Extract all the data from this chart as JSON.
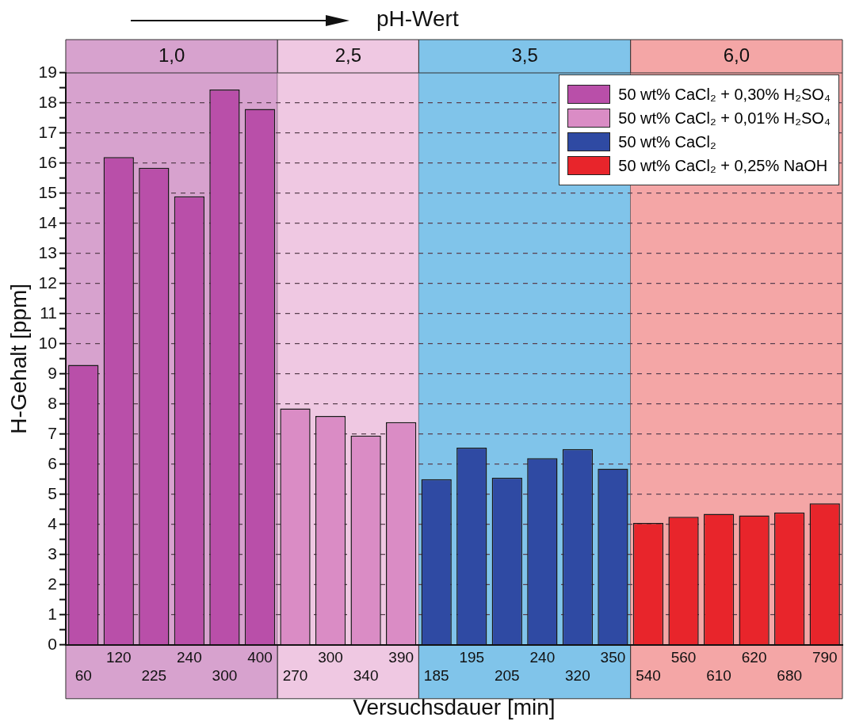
{
  "chart_data": {
    "type": "bar",
    "title": "pH-Wert",
    "xlabel": "Versuchsdauer [min]",
    "ylabel": "H-Gehalt [ppm]",
    "categories": [
      "60",
      "120",
      "225",
      "240",
      "300",
      "400",
      "270",
      "300",
      "340",
      "390",
      "185",
      "195",
      "205",
      "240",
      "320",
      "350",
      "540",
      "560",
      "610",
      "620",
      "680",
      "790"
    ],
    "series": [
      {
        "name": "50 wt% CaCl₂ + 0,30% H₂SO₄",
        "color": "#b94fa9",
        "values": [
          9.3,
          16.2,
          15.85,
          14.9,
          18.45,
          17.8,
          null,
          null,
          null,
          null,
          null,
          null,
          null,
          null,
          null,
          null,
          null,
          null,
          null,
          null,
          null,
          null
        ]
      },
      {
        "name": "50 wt% CaCl₂ + 0,01% H₂SO₄",
        "color": "#da8cc5",
        "values": [
          null,
          null,
          null,
          null,
          null,
          null,
          7.85,
          7.6,
          6.95,
          7.4,
          null,
          null,
          null,
          null,
          null,
          null,
          null,
          null,
          null,
          null,
          null,
          null
        ]
      },
      {
        "name": "50 wt% CaCl₂",
        "color": "#2f4aa3",
        "values": [
          null,
          null,
          null,
          null,
          null,
          null,
          null,
          null,
          null,
          null,
          5.5,
          6.55,
          5.55,
          6.2,
          6.5,
          5.85,
          null,
          null,
          null,
          null,
          null,
          null
        ]
      },
      {
        "name": "50 wt% CaCl₂ + 0,25% NaOH",
        "color": "#e8252b",
        "values": [
          null,
          null,
          null,
          null,
          null,
          null,
          null,
          null,
          null,
          null,
          null,
          null,
          null,
          null,
          null,
          null,
          4.05,
          4.25,
          4.35,
          4.3,
          4.4,
          4.7
        ]
      }
    ],
    "ylim": [
      0,
      19
    ],
    "yticks": [
      0,
      {
        "value": 0.5,
        "label": null
      },
      1,
      {
        "value": 1.5,
        "label": null
      },
      2,
      {
        "value": 2.5,
        "label": null
      },
      3,
      {
        "value": 3.5,
        "label": null
      },
      4,
      {
        "value": 4.5,
        "label": null
      },
      5,
      {
        "value": 5.5,
        "label": null
      },
      6,
      {
        "value": 6.5,
        "label": null
      },
      7,
      {
        "value": 7.5,
        "label": null
      },
      8,
      {
        "value": 8.5,
        "label": null
      },
      9,
      {
        "value": 9.5,
        "label": null
      },
      10,
      {
        "value": 10.5,
        "label": null
      },
      11,
      {
        "value": 11.5,
        "label": null
      },
      12,
      {
        "value": 12.5,
        "label": null
      },
      13,
      {
        "value": 13.5,
        "label": null
      },
      14,
      {
        "value": 14.5,
        "label": null
      },
      15,
      {
        "value": 15.5,
        "label": null
      },
      16,
      {
        "value": 16.5,
        "label": null
      },
      17,
      {
        "value": 17.5,
        "label": null
      },
      18,
      {
        "value": 18.5,
        "label": null
      },
      19
    ],
    "bands": [
      {
        "axis": "x",
        "from": "60",
        "to": "400",
        "label": "1,0",
        "color": "#d7a2ce"
      },
      {
        "axis": "x",
        "from": "270",
        "to": "390",
        "label": "2,5",
        "color": "#efc8e2"
      },
      {
        "axis": "x",
        "from": "185",
        "to": "350",
        "label": "3,5",
        "color": "#80c4ea"
      },
      {
        "axis": "x",
        "from": "540",
        "to": "790",
        "label": "6,0",
        "color": "#f4a6a6"
      }
    ],
    "grid": "y",
    "legend": "top right"
  }
}
